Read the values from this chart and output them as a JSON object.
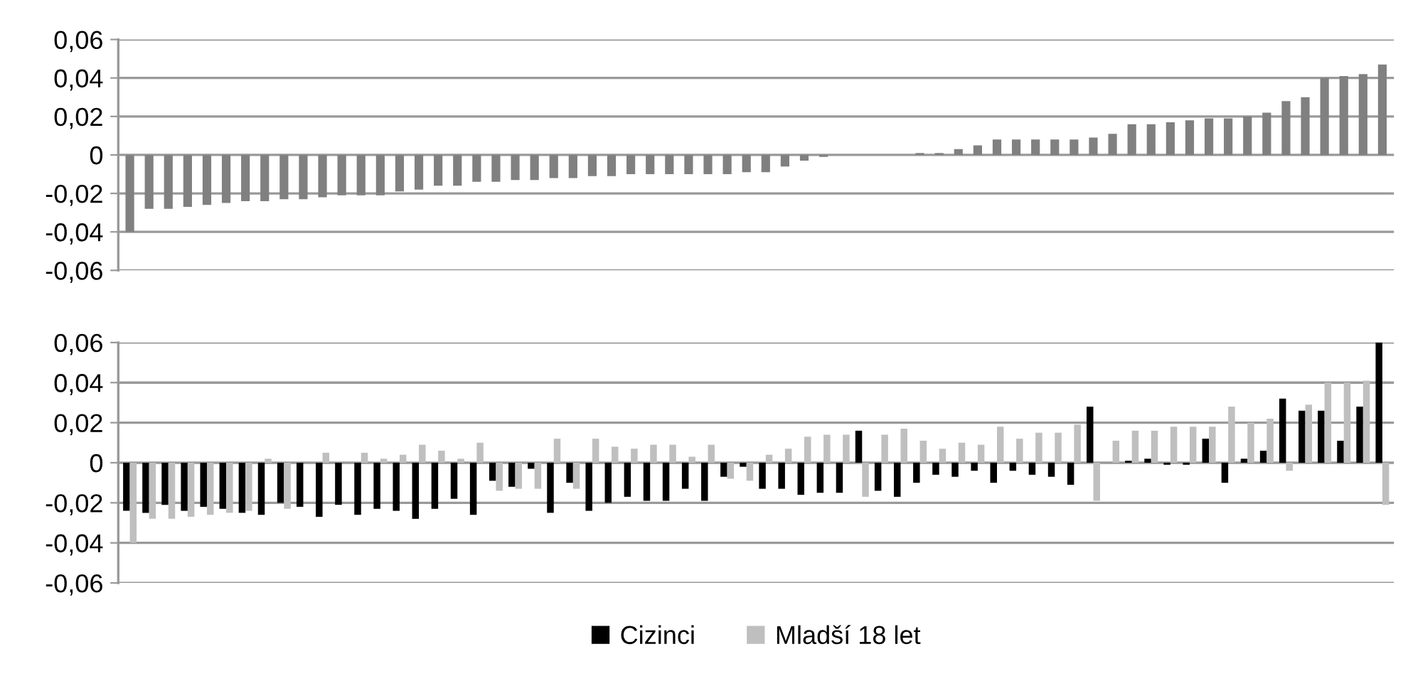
{
  "chart_data": [
    {
      "type": "bar",
      "categories": [
        null,
        null,
        null,
        null,
        null,
        null,
        null,
        null,
        null,
        null,
        null,
        null,
        null,
        null,
        null,
        null,
        null,
        null,
        null,
        null,
        null,
        null,
        null,
        null,
        null,
        null,
        null,
        null,
        null,
        null,
        null,
        null,
        null,
        null,
        null,
        null,
        null,
        null,
        null,
        null,
        null,
        null,
        null,
        null,
        null,
        null,
        null,
        null,
        null,
        null,
        null,
        null,
        null,
        null,
        null,
        null,
        null,
        null,
        null,
        null,
        null,
        null,
        null,
        null,
        null,
        null
      ],
      "series": [
        {
          "color": "#808080",
          "values": [
            -0.04,
            -0.028,
            -0.028,
            -0.027,
            -0.026,
            -0.025,
            -0.024,
            -0.024,
            -0.023,
            -0.023,
            -0.022,
            -0.021,
            -0.021,
            -0.021,
            -0.019,
            -0.018,
            -0.016,
            -0.016,
            -0.014,
            -0.014,
            -0.013,
            -0.013,
            -0.012,
            -0.012,
            -0.011,
            -0.011,
            -0.01,
            -0.01,
            -0.01,
            -0.01,
            -0.01,
            -0.01,
            -0.009,
            -0.009,
            -0.006,
            -0.003,
            -0.001,
            0,
            0,
            0,
            0,
            0.001,
            0.001,
            0.003,
            0.005,
            0.008,
            0.008,
            0.008,
            0.008,
            0.008,
            0.009,
            0.011,
            0.016,
            0.016,
            0.017,
            0.018,
            0.019,
            0.019,
            0.02,
            0.022,
            0.028,
            0.03,
            0.04,
            0.041,
            0.042,
            0.047
          ]
        }
      ],
      "ylim": [
        -0.06,
        0.06
      ],
      "yticks": [
        {
          "value": -0.06,
          "label": "-0,06"
        },
        {
          "value": -0.04,
          "label": "-0,04"
        },
        {
          "value": -0.02,
          "label": "-0,02"
        },
        {
          "value": 0,
          "label": "0"
        },
        {
          "value": 0.02,
          "label": "0,02"
        },
        {
          "value": 0.04,
          "label": "0,04"
        },
        {
          "value": 0.06,
          "label": "0,06"
        }
      ],
      "grid": "y",
      "tick_labels": "y"
    },
    {
      "type": "bar",
      "categories": [
        null,
        null,
        null,
        null,
        null,
        null,
        null,
        null,
        null,
        null,
        null,
        null,
        null,
        null,
        null,
        null,
        null,
        null,
        null,
        null,
        null,
        null,
        null,
        null,
        null,
        null,
        null,
        null,
        null,
        null,
        null,
        null,
        null,
        null,
        null,
        null,
        null,
        null,
        null,
        null,
        null,
        null,
        null,
        null,
        null,
        null,
        null,
        null,
        null,
        null,
        null,
        null,
        null,
        null,
        null,
        null,
        null,
        null,
        null,
        null,
        null,
        null,
        null,
        null,
        null,
        null
      ],
      "series": [
        {
          "name": "Cizinci",
          "color": "#000000",
          "values": [
            -0.024,
            -0.025,
            -0.021,
            -0.024,
            -0.022,
            -0.023,
            -0.025,
            -0.026,
            -0.02,
            -0.022,
            -0.027,
            -0.021,
            -0.026,
            -0.023,
            -0.024,
            -0.028,
            -0.023,
            -0.018,
            -0.026,
            -0.009,
            -0.012,
            -0.003,
            -0.025,
            -0.01,
            -0.024,
            -0.02,
            -0.017,
            -0.019,
            -0.019,
            -0.013,
            -0.019,
            -0.007,
            -0.002,
            -0.013,
            -0.013,
            -0.016,
            -0.015,
            -0.015,
            0.016,
            -0.014,
            -0.017,
            -0.01,
            -0.006,
            -0.007,
            -0.004,
            -0.01,
            -0.004,
            -0.006,
            -0.007,
            -0.011,
            0.028,
            0,
            0.001,
            0.002,
            -0.001,
            -0.001,
            0.012,
            -0.01,
            0.002,
            0.006,
            0.032,
            0.026,
            0.026,
            0.011,
            0.028,
            0.06
          ]
        },
        {
          "name": "Mladší 18 let",
          "color": "#bfbfbf",
          "values": [
            -0.04,
            -0.028,
            -0.028,
            -0.027,
            -0.026,
            -0.025,
            -0.024,
            0.002,
            -0.023,
            null,
            0.005,
            0,
            0.005,
            0.002,
            0.004,
            0.009,
            0.006,
            0.002,
            0.01,
            -0.014,
            -0.013,
            -0.013,
            0.012,
            -0.013,
            0.012,
            0.008,
            0.007,
            0.009,
            0.009,
            0.003,
            0.009,
            -0.008,
            -0.009,
            0.004,
            0.007,
            0.013,
            0.014,
            0.014,
            -0.017,
            0.014,
            0.017,
            0.011,
            0.007,
            0.01,
            0.009,
            0.018,
            0.012,
            0.015,
            0.015,
            0.019,
            -0.019,
            0.011,
            0.016,
            0.016,
            0.018,
            0.018,
            0.018,
            0.028,
            0.02,
            0.022,
            -0.004,
            0.029,
            0.04,
            0.04,
            0.041,
            -0.021
          ]
        }
      ],
      "ylim": [
        -0.06,
        0.06
      ],
      "yticks": [
        {
          "value": -0.06,
          "label": "-0,06"
        },
        {
          "value": -0.04,
          "label": "-0,04"
        },
        {
          "value": -0.02,
          "label": "-0,02"
        },
        {
          "value": 0,
          "label": "0"
        },
        {
          "value": 0.02,
          "label": "0,02"
        },
        {
          "value": 0.04,
          "label": "0,04"
        },
        {
          "value": 0.06,
          "label": "0,06"
        }
      ],
      "grid": "y",
      "tick_labels": "y",
      "legend": "bottom"
    }
  ]
}
